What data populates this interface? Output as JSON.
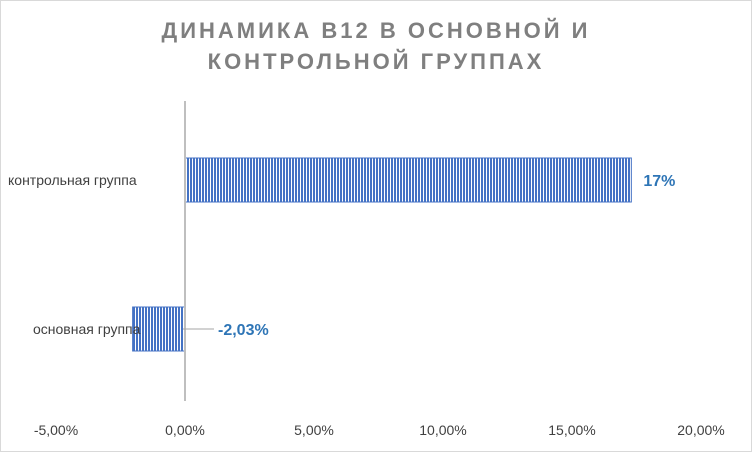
{
  "chart_data": {
    "type": "bar",
    "orientation": "horizontal",
    "title_lines": [
      "ДИНАМИКА B12 В ОСНОВНОЙ И",
      "КОНТРОЛЬНОЙ ГРУППАХ"
    ],
    "categories": [
      "контрольная группа",
      "основная группа"
    ],
    "values": [
      17.3,
      -2.03
    ],
    "data_labels": [
      "17%",
      "-2,03%"
    ],
    "xlim": [
      -5,
      20
    ],
    "xticks": [
      -5,
      0,
      5,
      10,
      15,
      20
    ],
    "xtick_labels": [
      "-5,00%",
      "0,00%",
      "5,00%",
      "10,00%",
      "15,00%",
      "20,00%"
    ],
    "xlabel": "",
    "ylabel": "",
    "grid": false,
    "legend": "none",
    "colors": {
      "bar_fill": "#4472c4",
      "bar_stripe": "#ffffff",
      "title": "#7f7f7f",
      "data_label": "#2e75b6",
      "axis": "#bfbfbf"
    }
  }
}
